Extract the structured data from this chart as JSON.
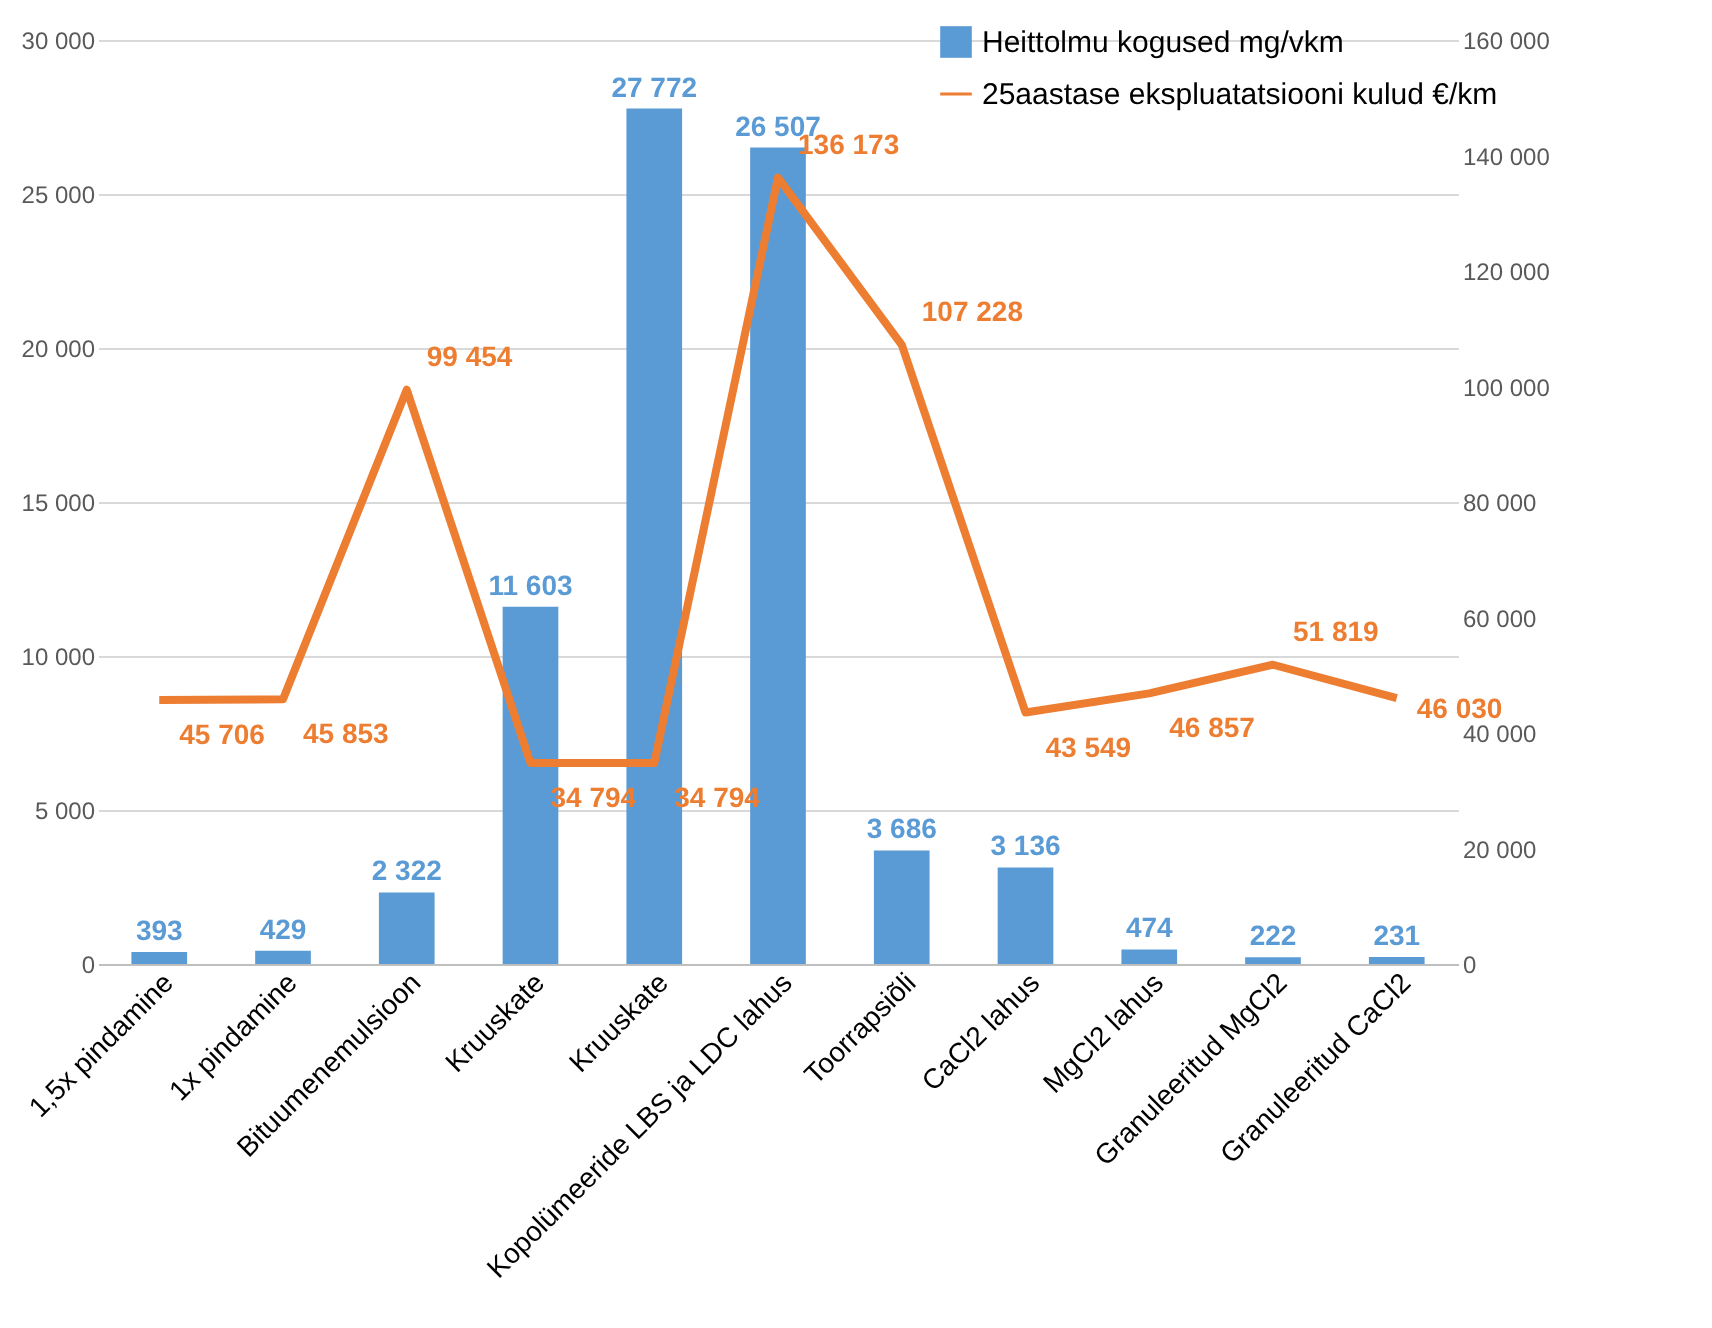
{
  "chart_data": {
    "type": "bar",
    "categories": [
      "1,5x pindamine",
      "1x pindamine",
      "Bituumenemulsioon",
      "Kruuskate",
      "Kruuskate",
      "Kopolümeeride LBS ja LDC lahus",
      "Toorrapsiõli",
      "CaCl2 lahus",
      "MgCl2 lahus",
      "Granuleeritud MgCl2",
      "Granuleeritud CaCl2"
    ],
    "series": [
      {
        "name": "Heittolmu kogused mg/vkm",
        "color": "#5b9bd5",
        "values": [
          393,
          429,
          2322,
          11603,
          27772,
          26507,
          3686,
          3136,
          474,
          222,
          231
        ],
        "value_labels": [
          "393",
          "429",
          "2 322",
          "11 603",
          "27 772",
          "26 507",
          "3 686",
          "3 136",
          "474",
          "222",
          "231"
        ]
      },
      {
        "name": "25aastase ekspluatatsiooni kulud €/km",
        "type": "line",
        "axis": "y2",
        "color": "#ed7d31",
        "values": [
          45706,
          45853,
          99454,
          34794,
          34794,
          136173,
          107228,
          43549,
          46857,
          51819,
          46030
        ],
        "value_labels": [
          "45 706",
          "45 853",
          "99 454",
          "34 794",
          "34 794",
          "136 173",
          "107 228",
          "43 549",
          "46 857",
          "51 819",
          "46 030"
        ]
      }
    ],
    "ylim": [
      0,
      30000
    ],
    "yticks": [
      0,
      {
        "value": 5000,
        "label": "5 000"
      },
      {
        "value": 10000,
        "label": "10 000"
      },
      {
        "value": 15000,
        "label": "15 000"
      },
      {
        "value": 20000,
        "label": "20 000"
      },
      {
        "value": 25000,
        "label": "25 000"
      },
      {
        "value": 30000,
        "label": "30 000"
      }
    ],
    "y2lim": [
      0,
      160000
    ],
    "y2ticks": [
      0,
      {
        "value": 20000,
        "label": "20 000"
      },
      {
        "value": 40000,
        "label": "40 000"
      },
      {
        "value": 60000,
        "label": "60 000"
      },
      {
        "value": 80000,
        "label": "80 000"
      },
      {
        "value": 100000,
        "label": "100 000"
      },
      {
        "value": 120000,
        "label": "120 000"
      },
      {
        "value": 140000,
        "label": "140 000"
      },
      {
        "value": 160000,
        "label": "160 000"
      }
    ],
    "grid": "y",
    "legend": "top right",
    "marker": "none",
    "line_style": "solid"
  }
}
